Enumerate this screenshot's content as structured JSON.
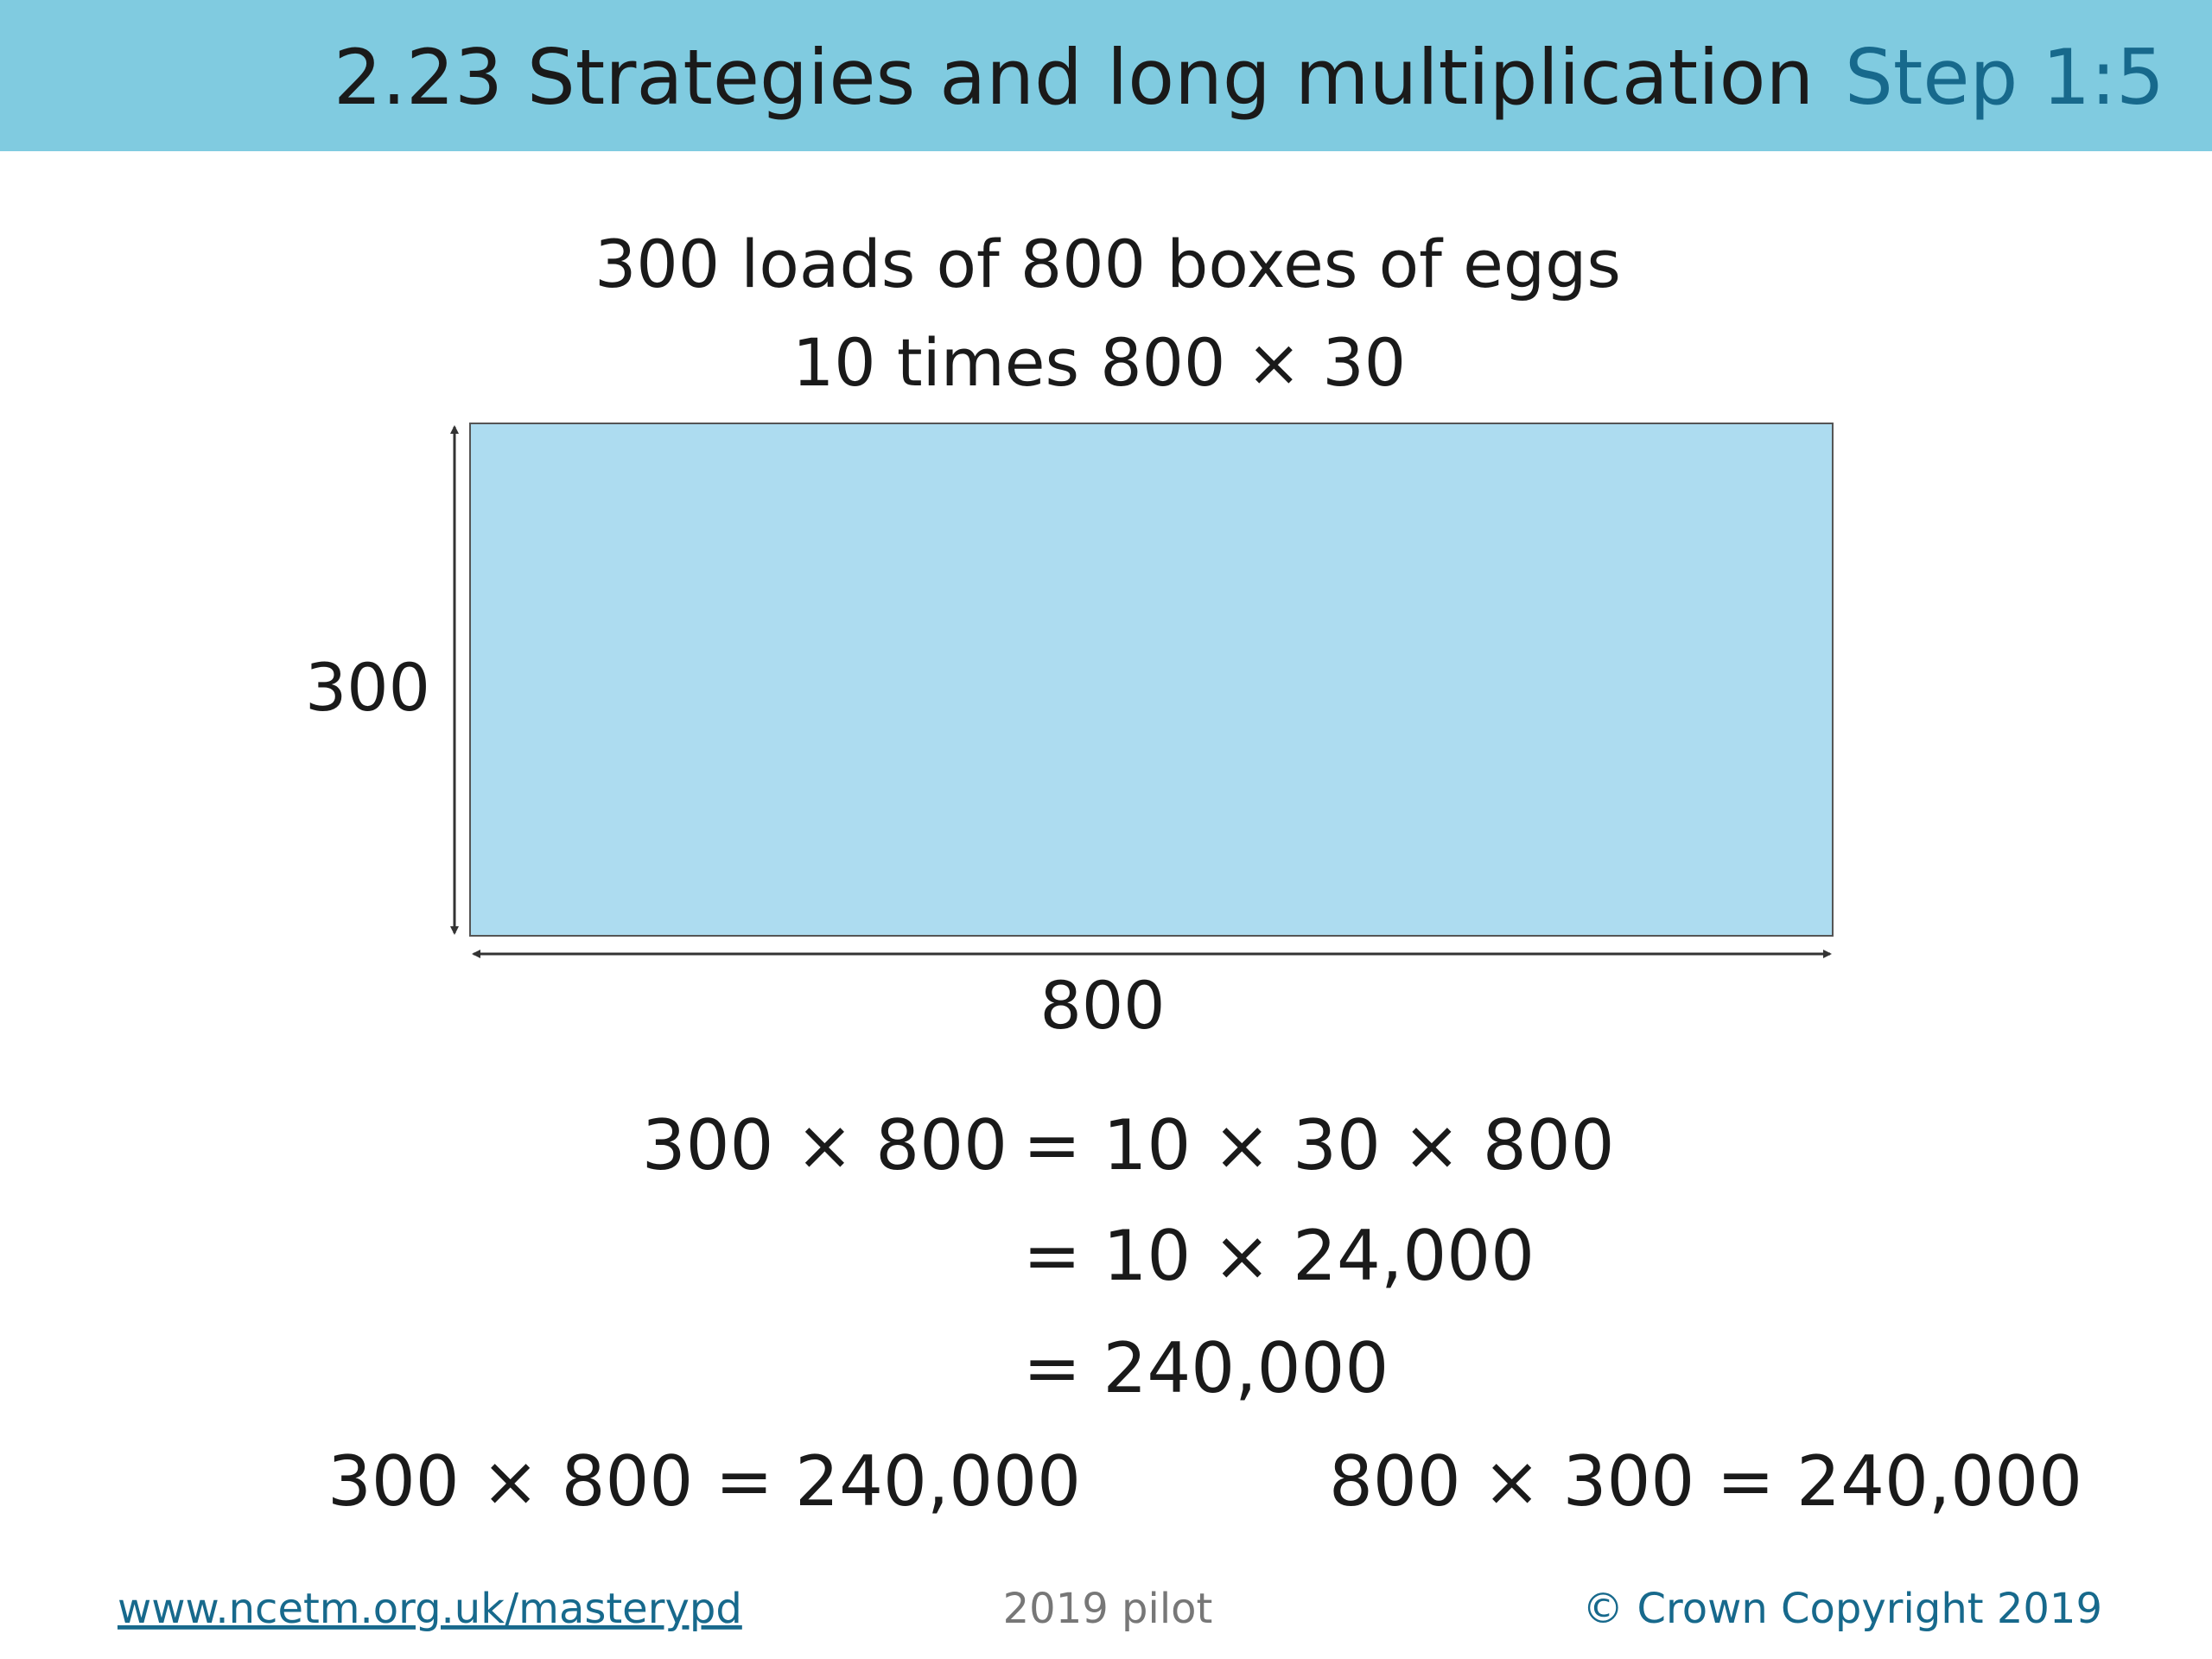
{
  "header": {
    "title": "2.23 Strategies and long multiplication",
    "step": "Step 1:5"
  },
  "problem": {
    "lines": [
      "300 loads of 800 boxes of eggs",
      "10 times 800 × 30"
    ]
  },
  "diagram": {
    "height_label": "300",
    "width_label": "800"
  },
  "working": {
    "lhs": "300 × 800",
    "lines": [
      "= 10 × 30 × 800",
      "= 10 × 24,000",
      "= 240,000"
    ]
  },
  "results": [
    "300 × 800 = 240,000",
    "800 × 300 = 240,000"
  ],
  "footer": {
    "link": "www.ncetm.org.uk/masterypd",
    "edition": "2019 pilot",
    "copyright": "© Crown Copyright 2019"
  }
}
